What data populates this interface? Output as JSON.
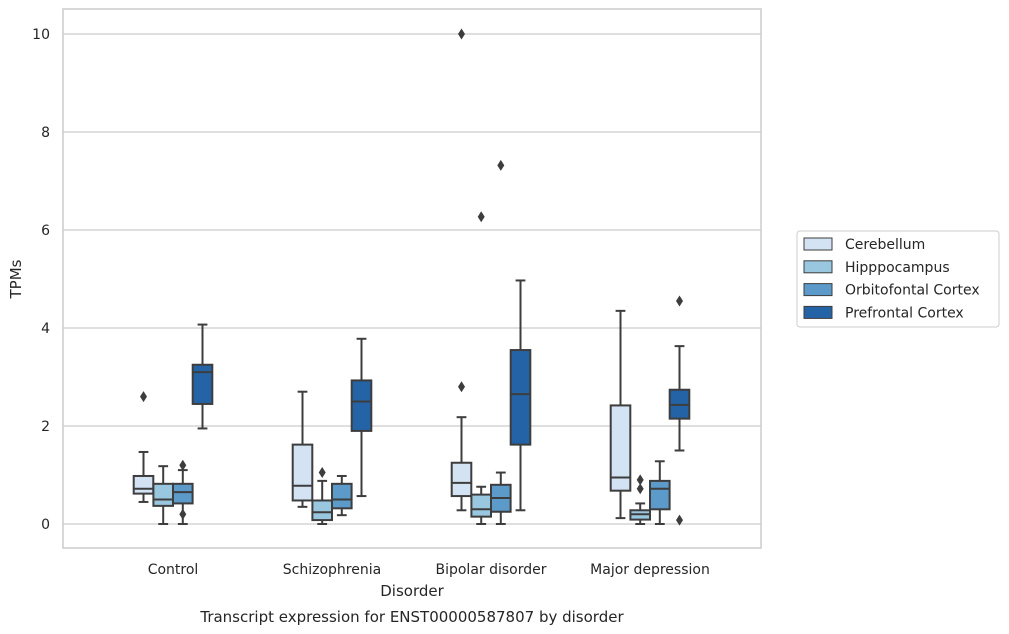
{
  "chart_data": {
    "type": "box",
    "title": "",
    "caption": "Transcript expression for ENST00000587807 by disorder",
    "xlabel": "Disorder",
    "ylabel": "TPMs",
    "ylim": [
      -0.48,
      10.5
    ],
    "yticks": [
      0,
      2,
      4,
      6,
      8,
      10
    ],
    "grid": "horizontal",
    "legend_position": "right",
    "categories": [
      "Control",
      "Schizophrenia",
      "Bipolar disorder",
      "Major depression"
    ],
    "series": [
      {
        "name": "Cerebellum",
        "color": "#d3e3f3",
        "boxes": [
          {
            "whislo": 0.45,
            "q1": 0.62,
            "med": 0.72,
            "q3": 0.98,
            "whishi": 1.47,
            "fliers": [
              2.6
            ]
          },
          {
            "whislo": 0.35,
            "q1": 0.48,
            "med": 0.78,
            "q3": 1.62,
            "whishi": 2.7,
            "fliers": []
          },
          {
            "whislo": 0.28,
            "q1": 0.57,
            "med": 0.84,
            "q3": 1.25,
            "whishi": 2.18,
            "fliers": [
              2.8,
              10.0
            ]
          },
          {
            "whislo": 0.12,
            "q1": 0.68,
            "med": 0.95,
            "q3": 2.42,
            "whishi": 4.35,
            "fliers": []
          }
        ]
      },
      {
        "name": "Hipppocampus",
        "color": "#9ac7e0",
        "boxes": [
          {
            "whislo": 0.0,
            "q1": 0.37,
            "med": 0.5,
            "q3": 0.82,
            "whishi": 1.18,
            "fliers": []
          },
          {
            "whislo": 0.0,
            "q1": 0.08,
            "med": 0.24,
            "q3": 0.48,
            "whishi": 0.88,
            "fliers": [
              1.05
            ]
          },
          {
            "whislo": 0.0,
            "q1": 0.15,
            "med": 0.3,
            "q3": 0.6,
            "whishi": 0.76,
            "fliers": [
              6.27
            ]
          },
          {
            "whislo": 0.0,
            "q1": 0.09,
            "med": 0.2,
            "q3": 0.28,
            "whishi": 0.42,
            "fliers": [
              0.72,
              0.9
            ]
          }
        ]
      },
      {
        "name": "Orbitofontal Cortex",
        "color": "#5b9ac9",
        "boxes": [
          {
            "whislo": 0.0,
            "q1": 0.42,
            "med": 0.65,
            "q3": 0.82,
            "whishi": 1.1,
            "fliers": [
              0.2,
              1.2
            ]
          },
          {
            "whislo": 0.18,
            "q1": 0.32,
            "med": 0.5,
            "q3": 0.82,
            "whishi": 0.98,
            "fliers": []
          },
          {
            "whislo": 0.0,
            "q1": 0.25,
            "med": 0.53,
            "q3": 0.8,
            "whishi": 1.05,
            "fliers": [
              7.32
            ]
          },
          {
            "whislo": 0.0,
            "q1": 0.3,
            "med": 0.72,
            "q3": 0.88,
            "whishi": 1.28,
            "fliers": []
          }
        ]
      },
      {
        "name": "Prefrontal Cortex",
        "color": "#2563a7",
        "boxes": [
          {
            "whislo": 1.95,
            "q1": 2.45,
            "med": 3.1,
            "q3": 3.25,
            "whishi": 4.07,
            "fliers": []
          },
          {
            "whislo": 0.57,
            "q1": 1.9,
            "med": 2.5,
            "q3": 2.93,
            "whishi": 3.78,
            "fliers": []
          },
          {
            "whislo": 0.28,
            "q1": 1.62,
            "med": 2.65,
            "q3": 3.55,
            "whishi": 4.97,
            "fliers": []
          },
          {
            "whislo": 1.5,
            "q1": 2.15,
            "med": 2.43,
            "q3": 2.74,
            "whishi": 3.63,
            "fliers": [
              0.08,
              4.55
            ]
          }
        ]
      }
    ]
  }
}
